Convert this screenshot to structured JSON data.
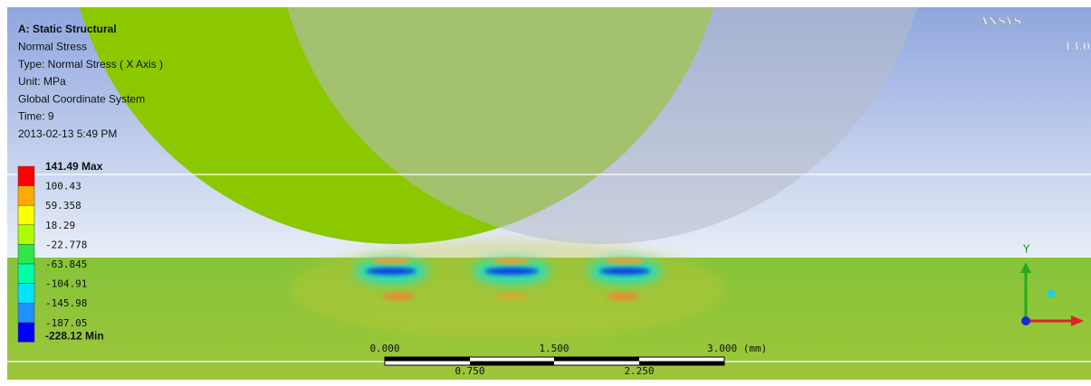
{
  "header": {
    "lines": [
      "A: Static Structural",
      "Normal Stress",
      "Type: Normal Stress ( X Axis )",
      "Unit: MPa",
      "Global Coordinate System",
      "Time: 9",
      "2013-02-13 5:49 PM"
    ]
  },
  "legend": {
    "labels": [
      "141.49 Max",
      "100.43",
      "59.358",
      "18.29",
      "-22.778",
      "-63.845",
      "-104.91",
      "-145.98",
      "-187.05",
      "-228.12 Min"
    ],
    "colors": [
      "#ff0000",
      "#ffaa00",
      "#ffff00",
      "#aaff00",
      "#2ee84a",
      "#00ffaa",
      "#00e5ff",
      "#1e90ff",
      "#0000ff"
    ]
  },
  "logo": {
    "brand": "ANSYS",
    "version": "13.0"
  },
  "triad": {
    "y_label": "Y"
  },
  "scale_bar": {
    "top_labels": [
      "0.000",
      "1.500",
      "3.000 (mm)"
    ],
    "bottom_labels": [
      "0.750",
      "2.250"
    ]
  }
}
